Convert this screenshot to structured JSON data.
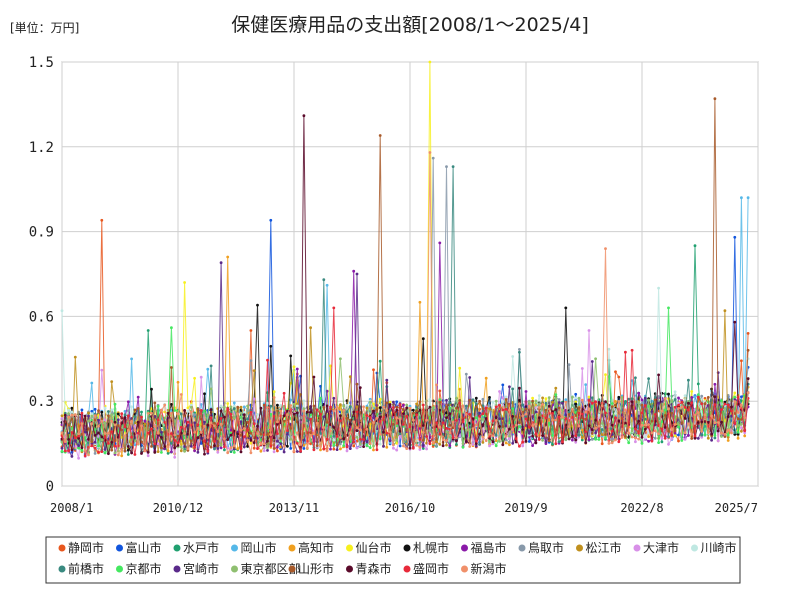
{
  "chart_data": {
    "type": "line",
    "title": "保健医療用品の支出額[2008/1～2025/4]",
    "unit_label": "[単位：万円]",
    "xlabel": "",
    "ylabel": "",
    "x_range": [
      "2008/1",
      "2025/7"
    ],
    "ylim": [
      0,
      1.5
    ],
    "y_ticks": [
      "0",
      "0.3",
      "0.6",
      "0.9",
      "1.2",
      "1.5"
    ],
    "x_ticks": [
      "2008/1",
      "2010/12",
      "2013/11",
      "2016/10",
      "2019/9",
      "2022/8",
      "2025/7"
    ],
    "grid": true,
    "legend_position": "bottom",
    "series": [
      {
        "name": "静岡市",
        "color": "#e8571e",
        "base": 0.18,
        "end": 0.54,
        "peaks": [
          [
            "2009/1",
            0.94
          ],
          [
            "2012/10",
            0.55
          ]
        ]
      },
      {
        "name": "富山市",
        "color": "#1155dd",
        "base": 0.19,
        "end": 0.42,
        "peaks": [
          [
            "2013/4",
            0.94
          ],
          [
            "2024/12",
            0.88
          ]
        ]
      },
      {
        "name": "水戸市",
        "color": "#20a070",
        "base": 0.18,
        "end": 0.33,
        "peaks": [
          [
            "2010/3",
            0.55
          ],
          [
            "2023/12",
            0.85
          ]
        ]
      },
      {
        "name": "岡山市",
        "color": "#55b8e8",
        "base": 0.2,
        "end": 1.02,
        "peaks": [
          [
            "2014/9",
            0.71
          ],
          [
            "2025/2",
            1.02
          ]
        ]
      },
      {
        "name": "高知市",
        "color": "#f0a020",
        "base": 0.18,
        "end": 0.35,
        "peaks": [
          [
            "2012/3",
            0.81
          ],
          [
            "2017/1",
            0.65
          ]
        ]
      },
      {
        "name": "仙台市",
        "color": "#f7f01e",
        "base": 0.2,
        "end": 0.3,
        "peaks": [
          [
            "2017/4",
            1.5
          ],
          [
            "2011/2",
            0.72
          ]
        ]
      },
      {
        "name": "札幌市",
        "color": "#111111",
        "base": 0.2,
        "end": 0.29,
        "peaks": [
          [
            "2020/9",
            0.63
          ],
          [
            "2012/12",
            0.64
          ]
        ]
      },
      {
        "name": "福島市",
        "color": "#8a1aa8",
        "base": 0.18,
        "end": 0.28,
        "peaks": [
          [
            "2015/5",
            0.76
          ],
          [
            "2017/7",
            0.86
          ]
        ]
      },
      {
        "name": "鳥取市",
        "color": "#8899aa",
        "base": 0.19,
        "end": 0.3,
        "peaks": [
          [
            "2017/5",
            1.16
          ],
          [
            "2017/9",
            1.13
          ]
        ]
      },
      {
        "name": "松江市",
        "color": "#c0901e",
        "base": 0.19,
        "end": 0.38,
        "peaks": [
          [
            "2014/4",
            0.56
          ],
          [
            "2024/9",
            0.62
          ]
        ]
      },
      {
        "name": "大津市",
        "color": "#d890e8",
        "base": 0.17,
        "end": 0.31,
        "peaks": [
          [
            "2009/1",
            0.41
          ],
          [
            "2021/4",
            0.55
          ]
        ]
      },
      {
        "name": "川崎市",
        "color": "#bfe8e2",
        "base": 0.2,
        "end": 0.45,
        "peaks": [
          [
            "2023/1",
            0.7
          ],
          [
            "2008/1",
            0.62
          ]
        ]
      },
      {
        "name": "前橋市",
        "color": "#3a8a80",
        "base": 0.19,
        "end": 0.36,
        "peaks": [
          [
            "2017/11",
            1.13
          ],
          [
            "2014/8",
            0.73
          ]
        ]
      },
      {
        "name": "京都市",
        "color": "#44e860",
        "base": 0.18,
        "end": 0.3,
        "peaks": [
          [
            "2023/4",
            0.63
          ],
          [
            "2010/10",
            0.56
          ]
        ]
      },
      {
        "name": "宮崎市",
        "color": "#5a2a8a",
        "base": 0.18,
        "end": 0.33,
        "peaks": [
          [
            "2012/1",
            0.79
          ],
          [
            "2015/6",
            0.75
          ]
        ]
      },
      {
        "name": "東京都区部",
        "color": "#8fbf70",
        "base": 0.19,
        "end": 0.3,
        "peaks": [
          [
            "2015/1",
            0.45
          ],
          [
            "2021/6",
            0.45
          ]
        ]
      },
      {
        "name": "山形市",
        "color": "#a85a2a",
        "base": 0.19,
        "end": 0.48,
        "peaks": [
          [
            "2016/1",
            1.24
          ],
          [
            "2024/6",
            1.37
          ]
        ]
      },
      {
        "name": "青森市",
        "color": "#5a0a2a",
        "base": 0.18,
        "end": 0.38,
        "peaks": [
          [
            "2014/2",
            1.31
          ],
          [
            "2024/12",
            0.58
          ]
        ]
      },
      {
        "name": "盛岡市",
        "color": "#e82a3a",
        "base": 0.18,
        "end": 0.31,
        "peaks": [
          [
            "2014/11",
            0.63
          ],
          [
            "2022/5",
            0.48
          ]
        ]
      },
      {
        "name": "新潟市",
        "color": "#f0906a",
        "base": 0.18,
        "end": 0.33,
        "peaks": [
          [
            "2017/4",
            1.18
          ],
          [
            "2021/9",
            0.84
          ]
        ]
      }
    ]
  }
}
